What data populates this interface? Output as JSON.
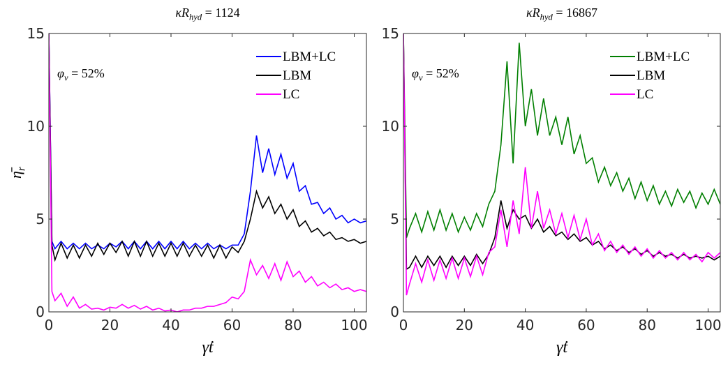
{
  "chart_data": [
    {
      "type": "line",
      "title": [
        "κR",
        "hyd",
        " = 1124"
      ],
      "annotation": [
        "φ",
        "v",
        " = 52%"
      ],
      "xlabel": "γ̇t",
      "ylabel": [
        "η̄",
        "r"
      ],
      "xlim": [
        0,
        104
      ],
      "ylim": [
        0,
        15
      ],
      "xticks": [
        0,
        20,
        40,
        60,
        80,
        100
      ],
      "yticks": [
        0,
        5,
        10,
        15
      ],
      "legend": "upper right",
      "x": [
        0,
        1,
        2,
        4,
        6,
        8,
        10,
        12,
        14,
        16,
        18,
        20,
        22,
        24,
        26,
        28,
        30,
        32,
        34,
        36,
        38,
        40,
        42,
        44,
        46,
        48,
        50,
        52,
        54,
        56,
        58,
        60,
        62,
        64,
        66,
        68,
        70,
        72,
        74,
        76,
        78,
        80,
        82,
        84,
        86,
        88,
        90,
        92,
        94,
        96,
        98,
        100,
        102,
        104
      ],
      "series": [
        {
          "name": "LBM+LC",
          "color": "#0000ff",
          "values": [
            15,
            3.8,
            3.4,
            3.8,
            3.4,
            3.7,
            3.4,
            3.7,
            3.4,
            3.6,
            3.4,
            3.7,
            3.5,
            3.8,
            3.4,
            3.8,
            3.4,
            3.8,
            3.4,
            3.8,
            3.4,
            3.8,
            3.4,
            3.8,
            3.4,
            3.7,
            3.4,
            3.7,
            3.4,
            3.6,
            3.4,
            3.6,
            3.6,
            4.2,
            6.5,
            9.5,
            7.5,
            8.8,
            7.4,
            8.5,
            7.2,
            8,
            6.5,
            6.8,
            5.8,
            5.9,
            5.3,
            5.6,
            5,
            5.2,
            4.8,
            5,
            4.8,
            4.9
          ]
        },
        {
          "name": "LBM",
          "color": "#000000",
          "values": [
            15,
            3.6,
            2.8,
            3.7,
            2.9,
            3.6,
            2.9,
            3.6,
            3,
            3.7,
            3.1,
            3.7,
            3.2,
            3.8,
            3,
            3.8,
            3,
            3.8,
            3,
            3.7,
            3,
            3.7,
            3,
            3.7,
            3,
            3.6,
            3,
            3.6,
            2.9,
            3.6,
            2.9,
            3.5,
            3.2,
            3.8,
            5,
            6.5,
            5.6,
            6.2,
            5.3,
            5.8,
            5,
            5.5,
            4.6,
            4.9,
            4.3,
            4.5,
            4.1,
            4.3,
            3.9,
            4,
            3.8,
            3.9,
            3.7,
            3.8
          ]
        },
        {
          "name": "LC",
          "color": "#ff00ff",
          "values": [
            15,
            1.1,
            0.6,
            1,
            0.3,
            0.8,
            0.2,
            0.4,
            0.15,
            0.2,
            0.1,
            0.25,
            0.2,
            0.4,
            0.2,
            0.35,
            0.15,
            0.3,
            0.1,
            0.2,
            0.05,
            0.1,
            0,
            0.1,
            0.1,
            0.2,
            0.2,
            0.3,
            0.3,
            0.4,
            0.5,
            0.8,
            0.7,
            1.1,
            2.8,
            2,
            2.5,
            1.8,
            2.6,
            1.7,
            2.7,
            1.9,
            2.2,
            1.6,
            1.9,
            1.4,
            1.6,
            1.3,
            1.5,
            1.2,
            1.3,
            1.1,
            1.2,
            1.1
          ]
        }
      ]
    },
    {
      "type": "line",
      "title": [
        "κR",
        "hyd",
        " = 16867"
      ],
      "annotation": [
        "φ",
        "v",
        " = 52%"
      ],
      "xlabel": "γ̇t",
      "xlim": [
        0,
        104
      ],
      "ylim": [
        0,
        15
      ],
      "xticks": [
        0,
        20,
        40,
        60,
        80,
        100
      ],
      "yticks": [
        0,
        5,
        10,
        15
      ],
      "legend": "upper right",
      "x": [
        0,
        1,
        2,
        4,
        6,
        8,
        10,
        12,
        14,
        16,
        18,
        20,
        22,
        24,
        26,
        28,
        30,
        32,
        34,
        36,
        38,
        40,
        42,
        44,
        46,
        48,
        50,
        52,
        54,
        56,
        58,
        60,
        62,
        64,
        66,
        68,
        70,
        72,
        74,
        76,
        78,
        80,
        82,
        84,
        86,
        88,
        90,
        92,
        94,
        96,
        98,
        100,
        102,
        104
      ],
      "series": [
        {
          "name": "LBM+LC",
          "color": "#007f00",
          "values": [
            15,
            4,
            4.5,
            5.3,
            4.3,
            5.4,
            4.4,
            5.5,
            4.4,
            5.3,
            4.3,
            5.1,
            4.4,
            5.3,
            4.6,
            5.8,
            6.5,
            9,
            13.5,
            8,
            14.5,
            10,
            12,
            9.5,
            11.5,
            9.5,
            10.5,
            9,
            10.5,
            8.5,
            9.5,
            8,
            8.3,
            7,
            7.8,
            6.8,
            7.5,
            6.5,
            7.2,
            6.1,
            7,
            6,
            6.8,
            5.8,
            6.5,
            5.7,
            6.6,
            5.9,
            6.5,
            5.6,
            6.4,
            5.8,
            6.6,
            5.8
          ]
        },
        {
          "name": "LBM",
          "color": "#000000",
          "values": [
            15,
            2.3,
            2.4,
            3,
            2.4,
            3,
            2.5,
            3,
            2.4,
            3,
            2.5,
            3,
            2.5,
            3.1,
            2.6,
            3.1,
            4,
            6,
            4.5,
            5.5,
            5,
            5.2,
            4.5,
            5,
            4.3,
            4.6,
            4.1,
            4.3,
            3.9,
            4.2,
            3.8,
            4,
            3.6,
            3.8,
            3.4,
            3.6,
            3.3,
            3.5,
            3.2,
            3.4,
            3.1,
            3.3,
            3,
            3.2,
            3,
            3.1,
            2.9,
            3.1,
            2.9,
            3,
            2.9,
            3,
            2.8,
            3
          ]
        },
        {
          "name": "LC",
          "color": "#ff00ff",
          "values": [
            15,
            0.9,
            1.5,
            2.6,
            1.6,
            2.8,
            1.7,
            2.8,
            1.8,
            2.9,
            1.8,
            2.9,
            1.9,
            3,
            2,
            3.2,
            3.5,
            5.5,
            3.5,
            6,
            4.2,
            7.8,
            4.5,
            6.5,
            4.5,
            5.5,
            4.2,
            5.3,
            4,
            5.2,
            3.9,
            5,
            3.6,
            4.2,
            3.3,
            3.8,
            3.2,
            3.6,
            3.1,
            3.5,
            3,
            3.4,
            2.9,
            3.3,
            2.9,
            3.2,
            2.8,
            3.2,
            2.8,
            3.1,
            2.7,
            3.2,
            2.9,
            3.2
          ]
        }
      ]
    }
  ]
}
